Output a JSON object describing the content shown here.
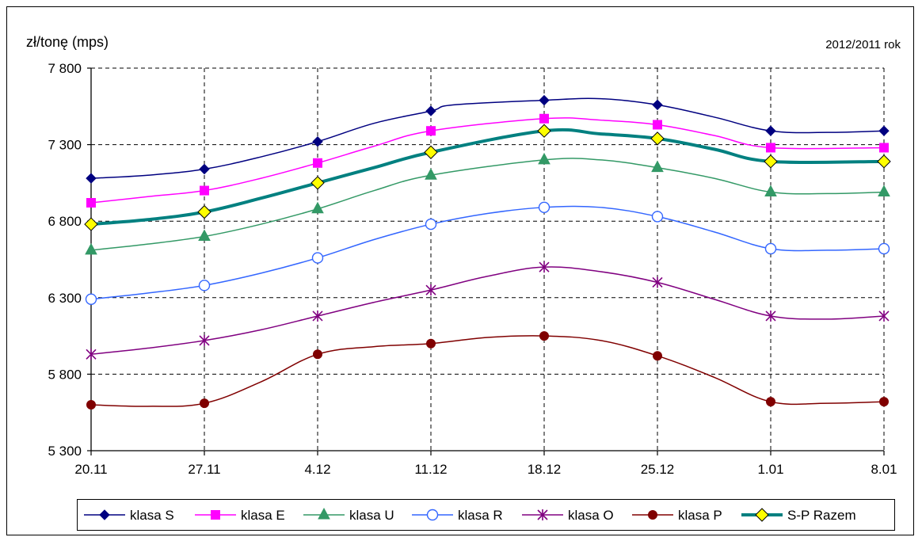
{
  "chart_data": {
    "type": "line",
    "ylabel": "zł/tonę (mps)",
    "period_label": "2012/2011 rok",
    "categories": [
      "20.11",
      "27.11",
      "4.12",
      "11.12",
      "18.12",
      "25.12",
      "1.01",
      "8.01"
    ],
    "y_ticks": [
      "5 300",
      "5 800",
      "6 300",
      "6 800",
      "7 300",
      "7 800"
    ],
    "ylim": [
      5300,
      7800
    ],
    "grid": true,
    "legend_position": "bottom",
    "series": [
      {
        "name": "klasa S",
        "color": "#000080",
        "marker": "diamond",
        "values": [
          7080,
          7140,
          7320,
          7520,
          7590,
          7560,
          7390,
          7390
        ],
        "interp": [
          [
            0.5,
            7100
          ],
          [
            1.5,
            7220
          ],
          [
            2.5,
            7440
          ],
          [
            3.2,
            7560
          ],
          [
            4.5,
            7600
          ],
          [
            5.5,
            7480
          ],
          [
            6.5,
            7380
          ]
        ]
      },
      {
        "name": "klasa E",
        "color": "#ff00ff",
        "marker": "square",
        "values": [
          6920,
          7000,
          7180,
          7390,
          7470,
          7430,
          7280,
          7280
        ],
        "interp": [
          [
            0.5,
            6960
          ],
          [
            1.5,
            7080
          ],
          [
            2.5,
            7290
          ],
          [
            4.5,
            7460
          ],
          [
            5.5,
            7360
          ]
        ]
      },
      {
        "name": "klasa U",
        "color": "#339966",
        "marker": "triangle",
        "values": [
          6610,
          6700,
          6880,
          7100,
          7200,
          7150,
          6990,
          6990
        ],
        "interp": [
          [
            0.5,
            6650
          ],
          [
            1.5,
            6780
          ],
          [
            2.5,
            7000
          ],
          [
            4.5,
            7200
          ],
          [
            5.5,
            7080
          ],
          [
            6.5,
            6980
          ]
        ]
      },
      {
        "name": "klasa R",
        "color": "#3366ff",
        "marker": "circle-open",
        "values": [
          6290,
          6380,
          6560,
          6780,
          6890,
          6830,
          6620,
          6620
        ],
        "interp": [
          [
            0.5,
            6330
          ],
          [
            1.5,
            6460
          ],
          [
            2.5,
            6680
          ],
          [
            3.5,
            6850
          ],
          [
            4.5,
            6890
          ],
          [
            5.5,
            6730
          ],
          [
            6.5,
            6610
          ]
        ]
      },
      {
        "name": "klasa O",
        "color": "#800080",
        "marker": "star",
        "values": [
          5930,
          6020,
          6180,
          6350,
          6500,
          6400,
          6180,
          6180
        ],
        "interp": [
          [
            0.5,
            5970
          ],
          [
            1.5,
            6090
          ],
          [
            2.5,
            6270
          ],
          [
            3.5,
            6440
          ],
          [
            4.5,
            6470
          ],
          [
            5.5,
            6290
          ],
          [
            6.5,
            6160
          ]
        ]
      },
      {
        "name": "klasa P",
        "color": "#800000",
        "marker": "circle",
        "values": [
          5600,
          5610,
          5930,
          6000,
          6050,
          5920,
          5620,
          5620
        ],
        "interp": [
          [
            0.5,
            5590
          ],
          [
            1.5,
            5750
          ],
          [
            2.5,
            5980
          ],
          [
            3.5,
            6040
          ],
          [
            4.5,
            6020
          ],
          [
            5.5,
            5780
          ],
          [
            6.5,
            5610
          ]
        ]
      },
      {
        "name": "S-P Razem",
        "color": "#008080",
        "marker": "diamond-yellow",
        "values": [
          6780,
          6860,
          7050,
          7250,
          7390,
          7340,
          7190,
          7190
        ],
        "interp": [
          [
            0.5,
            6810
          ],
          [
            1.5,
            6950
          ],
          [
            2.5,
            7150
          ],
          [
            4.5,
            7370
          ],
          [
            5.5,
            7270
          ]
        ]
      }
    ]
  }
}
